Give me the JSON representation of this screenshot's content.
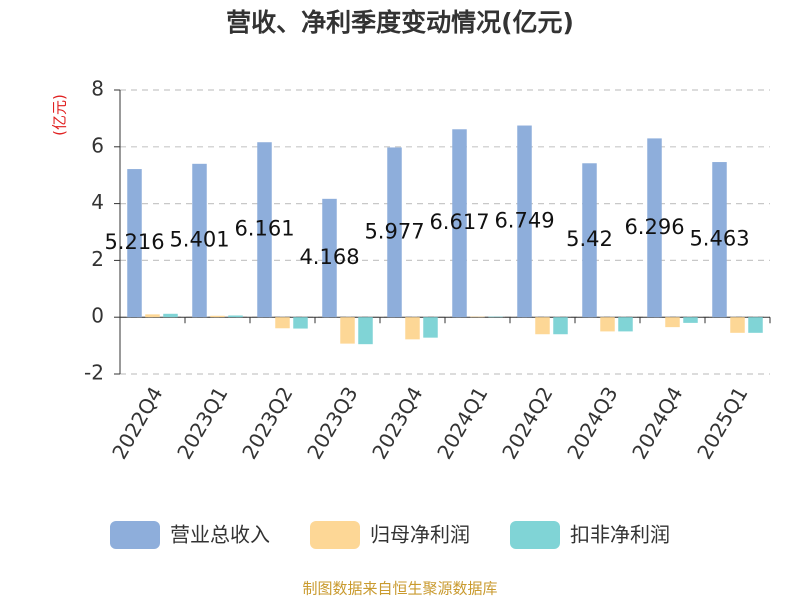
{
  "chart_data": {
    "type": "bar",
    "title": "营收、净利季度变动情况(亿元)",
    "y_label": "(亿元)",
    "categories": [
      "2022Q4",
      "2023Q1",
      "2023Q2",
      "2023Q3",
      "2023Q4",
      "2024Q1",
      "2024Q2",
      "2024Q3",
      "2024Q4",
      "2025Q1"
    ],
    "series": [
      {
        "name": "营业总收入",
        "color": "#8eaedb",
        "values": [
          5.216,
          5.401,
          6.161,
          4.168,
          5.977,
          6.617,
          6.749,
          5.42,
          6.296,
          5.463
        ]
      },
      {
        "name": "归母净利润",
        "color": "#fdd796",
        "values": [
          0.1,
          0.05,
          -0.39,
          -0.93,
          -0.78,
          0.02,
          -0.6,
          -0.5,
          -0.35,
          -0.55
        ]
      },
      {
        "name": "扣非净利润",
        "color": "#80d4d6",
        "values": [
          0.12,
          0.06,
          -0.4,
          -0.95,
          -0.72,
          0.02,
          -0.6,
          -0.5,
          -0.2,
          -0.55
        ]
      }
    ],
    "ylim": [
      -2,
      8
    ],
    "yticks": [
      -2,
      0,
      2,
      4,
      6,
      8
    ],
    "grid": true,
    "source": "制图数据来自恒生聚源数据库"
  }
}
